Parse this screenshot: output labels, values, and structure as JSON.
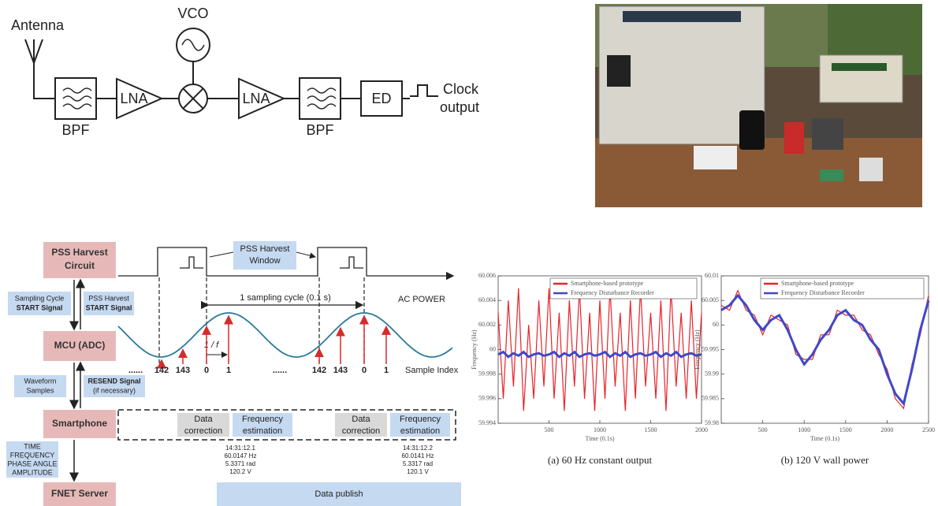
{
  "block_diagram": {
    "antenna": "Antenna",
    "vco": "VCO",
    "bpf_in": "BPF",
    "lna_in": "LNA",
    "lna_out": "LNA",
    "bpf_out": "BPF",
    "ed": "ED",
    "clock_output": [
      "Clock",
      "output"
    ]
  },
  "timing_diagram": {
    "nodes": {
      "pss": [
        "PSS Harvest",
        "Circuit"
      ],
      "mcu": "MCU (ADC)",
      "smartphone": "Smartphone",
      "fnet": "FNET Server"
    },
    "signals": {
      "sampling_start": [
        "Sampling Cycle",
        "START Signal"
      ],
      "pss_start": [
        "PSS Harvest",
        "START Signal"
      ],
      "waveform": [
        "Waveform",
        "Samples"
      ],
      "resend": [
        "RESEND Signal",
        "(if necessary)"
      ],
      "outputs": [
        "TIME",
        "FREQUENCY",
        "PHASE ANGLE",
        "AMPLITUDE"
      ]
    },
    "harvest_window": [
      "PSS Harvest",
      "Window"
    ],
    "sampling_cycle": "1 sampling cycle (0.1 s)",
    "ac_power": "AC POWER",
    "period": "1 / f",
    "sample_indices": [
      "......",
      "142",
      "143",
      "0",
      "1",
      "......",
      "142",
      "143",
      "0",
      "1"
    ],
    "sample_index_label": "Sample Index",
    "processing": [
      {
        "correction": [
          "Data",
          "correction"
        ],
        "estimation": [
          "Frequency",
          "estimation"
        ],
        "readout": [
          "14:31:12.1",
          "60.0147 Hz",
          "5.3371 rad",
          "120.2 V"
        ]
      },
      {
        "correction": [
          "Data",
          "correction"
        ],
        "estimation": [
          "Frequency",
          "estimation"
        ],
        "readout": [
          "14:31:12.2",
          "60.0141 Hz",
          "5.3317 rad",
          "120.1 V"
        ]
      }
    ],
    "publish": "Data publish"
  },
  "chart_data": [
    {
      "type": "line",
      "caption": "(a) 60 Hz constant output",
      "x_label": "Time (0.1s)",
      "y_label": "Frequency (Hz)",
      "x": [
        0,
        50,
        100,
        150,
        200,
        250,
        300,
        350,
        400,
        450,
        500,
        550,
        600,
        650,
        700,
        750,
        800,
        850,
        900,
        950,
        1000,
        1050,
        1100,
        1150,
        1200,
        1250,
        1300,
        1350,
        1400,
        1450,
        1500,
        1550,
        1600,
        1650,
        1700,
        1750,
        1800,
        1850,
        1900,
        1950,
        2000
      ],
      "series": [
        {
          "name": "Smartphone-based prototype",
          "color": "#e8232a",
          "values": [
            60.003,
            59.996,
            60.004,
            59.997,
            60.005,
            59.995,
            60.002,
            59.996,
            60.004,
            59.997,
            60.005,
            59.996,
            60.003,
            59.995,
            60.004,
            59.997,
            60.005,
            59.996,
            60.003,
            59.995,
            60.004,
            59.996,
            60.005,
            59.997,
            60.003,
            59.995,
            60.004,
            59.996,
            60.005,
            59.997,
            60.003,
            59.996,
            60.004,
            59.995,
            60.005,
            59.997,
            60.003,
            59.996,
            60.004,
            59.996,
            60.003
          ]
        },
        {
          "name": "Frequency Disturbance Recorder",
          "color": "#3f48c8",
          "values": [
            59.9996,
            59.9998,
            59.9994,
            59.9997,
            59.9995,
            59.9998,
            59.9994,
            59.9996,
            59.9997,
            59.9995,
            59.9996,
            59.9998,
            59.9994,
            59.9997,
            59.9995,
            59.9998,
            59.9994,
            59.9996,
            59.9997,
            59.9995,
            59.9996,
            59.9998,
            59.9994,
            59.9997,
            59.9995,
            59.9998,
            59.9994,
            59.9996,
            59.9997,
            59.9995,
            59.9996,
            59.9998,
            59.9994,
            59.9997,
            59.9995,
            59.9998,
            59.9994,
            59.9996,
            59.9997,
            59.9995,
            59.9996
          ]
        }
      ],
      "xlim": [
        0,
        2000
      ],
      "xticks": [
        500,
        1000,
        1500,
        2000
      ],
      "ylim": [
        59.994,
        60.006
      ],
      "yticks": [
        59.994,
        59.996,
        59.998,
        60,
        60.002,
        60.004,
        60.006
      ]
    },
    {
      "type": "line",
      "caption": "(b) 120 V wall power",
      "x_label": "Time (0.1s)",
      "y_label": "Frequency (Hz)",
      "x": [
        0,
        100,
        200,
        300,
        400,
        500,
        600,
        700,
        800,
        900,
        1000,
        1100,
        1200,
        1300,
        1400,
        1500,
        1600,
        1700,
        1800,
        1900,
        2000,
        2100,
        2200,
        2300,
        2400,
        2500
      ],
      "series": [
        {
          "name": "Smartphone-based prototype",
          "color": "#e8232a",
          "values": [
            60.004,
            60.003,
            60.007,
            60.003,
            60.002,
            59.998,
            60.002,
            60.001,
            60.0,
            59.994,
            59.993,
            59.993,
            59.998,
            59.998,
            60.003,
            60.002,
            60.002,
            59.999,
            59.998,
            59.994,
            59.991,
            59.985,
            59.983,
            59.992,
            59.998,
            60.006
          ]
        },
        {
          "name": "Frequency Disturbance Recorder",
          "color": "#3f48c8",
          "values": [
            60.003,
            60.004,
            60.006,
            60.004,
            60.001,
            59.999,
            60.001,
            60.002,
            59.999,
            59.995,
            59.992,
            59.994,
            59.997,
            59.999,
            60.002,
            60.003,
            60.001,
            60.0,
            59.997,
            59.995,
            59.99,
            59.986,
            59.984,
            59.991,
            59.999,
            60.005
          ]
        }
      ],
      "xlim": [
        0,
        2500
      ],
      "xticks": [
        500,
        1000,
        1500,
        2000,
        2500
      ],
      "ylim": [
        59.98,
        60.01
      ],
      "yticks": [
        59.98,
        59.985,
        59.99,
        59.995,
        60,
        60.005,
        60.01
      ]
    }
  ]
}
